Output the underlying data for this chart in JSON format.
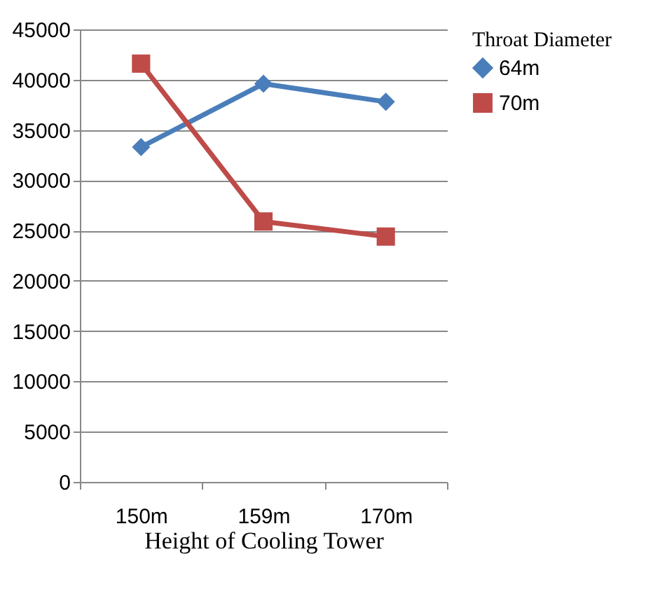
{
  "chart_data": {
    "type": "line",
    "xlabel": "Height of Cooling Tower",
    "legend_title": "Throat Diameter",
    "categories": [
      "150m",
      "159m",
      "170m"
    ],
    "ylim": [
      0,
      45000
    ],
    "yticks": [
      0,
      5000,
      10000,
      15000,
      20000,
      25000,
      30000,
      35000,
      40000,
      45000
    ],
    "grid": "y",
    "legend": "right",
    "line_style": "solid",
    "series": [
      {
        "name": "64m",
        "color": "#4a7ebb",
        "marker": "diamond",
        "values": [
          33300,
          39600,
          37800
        ]
      },
      {
        "name": "70m",
        "color": "#be4b48",
        "marker": "square",
        "values": [
          41600,
          25900,
          24400
        ]
      }
    ]
  }
}
